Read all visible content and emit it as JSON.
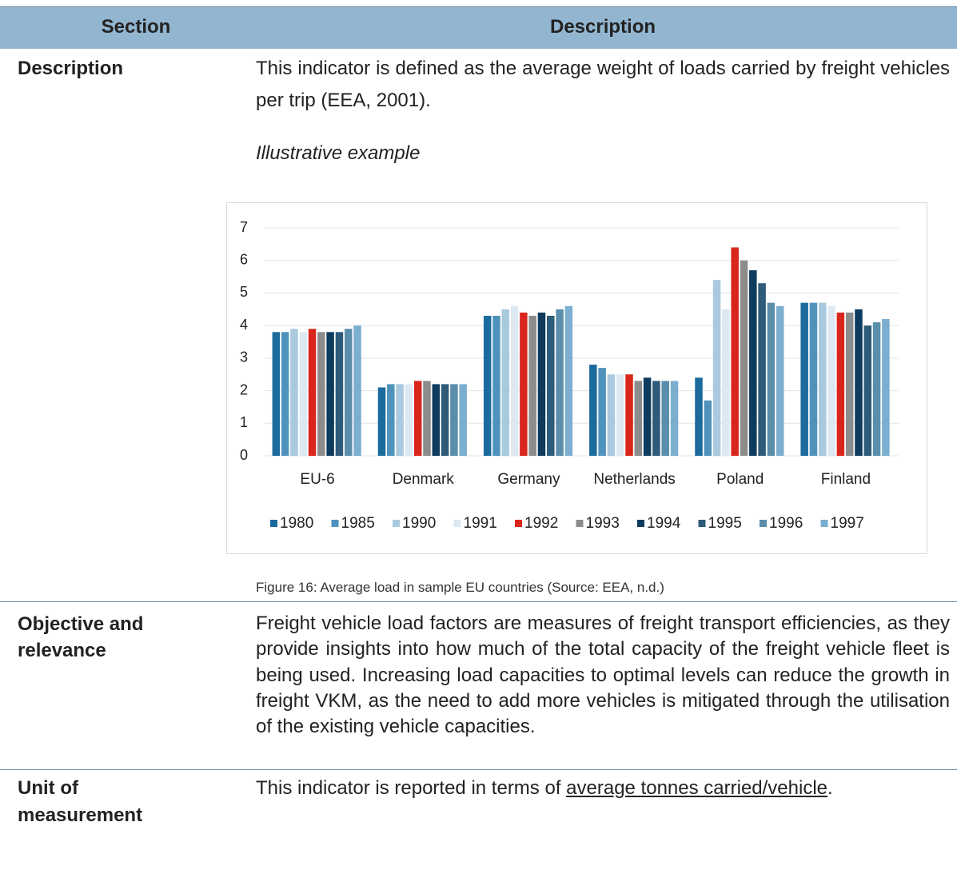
{
  "table": {
    "header": [
      "Section",
      "Description"
    ],
    "rows": [
      {
        "section": "Description",
        "text": "This indicator is defined as the average weight of loads carried by freight vehicles per trip (EEA, 2001).",
        "subheading": "Illustrative example",
        "caption": "Figure 16: Average load in sample EU countries (Source: EEA, n.d.)"
      },
      {
        "section": "Objective and relevance",
        "text": "Freight vehicle load factors are measures of freight transport efficiencies, as they provide insights into how much of the total capacity of the freight vehicle fleet is being used. Increasing load capacities to optimal levels can reduce the growth in freight VKM, as the need to add more vehicles is mitigated through the utilisation of the existing vehicle capacities."
      },
      {
        "section": "Unit of measurement",
        "text": [
          "This indicator is reported in terms of ",
          "average tonnes carried/vehicle",
          "."
        ]
      }
    ]
  },
  "chart_data": {
    "type": "bar",
    "categories": [
      "EU-6",
      "Denmark",
      "Germany",
      "Netherlands",
      "Poland",
      "Finland"
    ],
    "series": [
      {
        "name": "1980",
        "color": "#1b6b9c",
        "values": [
          3.8,
          2.1,
          4.3,
          2.8,
          2.4,
          4.7
        ]
      },
      {
        "name": "1985",
        "color": "#4f93bd",
        "values": [
          3.8,
          2.2,
          4.3,
          2.7,
          1.7,
          4.7
        ]
      },
      {
        "name": "1990",
        "color": "#a9c9de",
        "values": [
          3.9,
          2.2,
          4.5,
          2.5,
          5.4,
          4.7
        ]
      },
      {
        "name": "1991",
        "color": "#dde9f2",
        "values": [
          3.8,
          2.2,
          4.6,
          2.5,
          4.5,
          4.6
        ]
      },
      {
        "name": "1992",
        "color": "#d9261c",
        "values": [
          3.9,
          2.3,
          4.4,
          2.5,
          6.4,
          4.4
        ]
      },
      {
        "name": "1993",
        "color": "#8c8c8c",
        "values": [
          3.8,
          2.3,
          4.3,
          2.3,
          6.0,
          4.4
        ]
      },
      {
        "name": "1994",
        "color": "#0e3b5e",
        "values": [
          3.8,
          2.2,
          4.4,
          2.4,
          5.7,
          4.5
        ]
      },
      {
        "name": "1995",
        "color": "#2e5b79",
        "values": [
          3.8,
          2.2,
          4.3,
          2.3,
          5.3,
          4.0
        ]
      },
      {
        "name": "1996",
        "color": "#5a8eab",
        "values": [
          3.9,
          2.2,
          4.5,
          2.3,
          4.7,
          4.1
        ]
      },
      {
        "name": "1997",
        "color": "#7caed0",
        "values": [
          4.0,
          2.2,
          4.6,
          2.3,
          4.6,
          4.2
        ]
      }
    ],
    "ylim": [
      0,
      7
    ],
    "yticks": [
      0,
      1,
      2,
      3,
      4,
      5,
      6,
      7
    ],
    "grid": true,
    "legend": "bottom"
  }
}
